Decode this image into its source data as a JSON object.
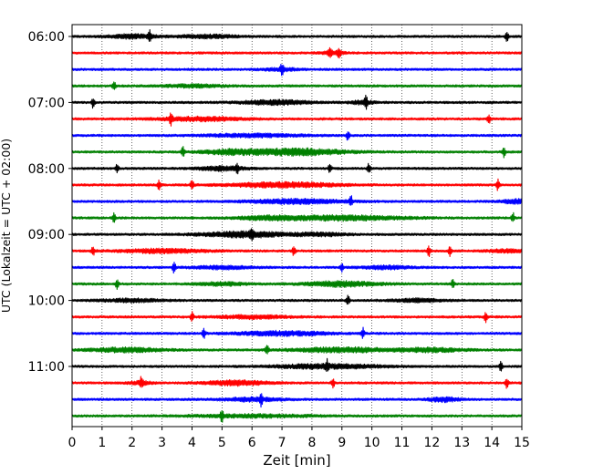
{
  "chart_data": {
    "type": "line",
    "title": "",
    "xlabel": "Zeit  [min]",
    "ylabel": "UTC (Lokalzeit = UTC + 02:00)",
    "xlim": [
      0,
      15
    ],
    "x_ticks": [
      "0",
      "1",
      "2",
      "3",
      "4",
      "5",
      "6",
      "7",
      "8",
      "9",
      "10",
      "11",
      "12",
      "13",
      "14",
      "15"
    ],
    "y_ticks": [
      {
        "label": "06:00",
        "row": 0
      },
      {
        "label": "07:00",
        "row": 4
      },
      {
        "label": "08:00",
        "row": 8
      },
      {
        "label": "09:00",
        "row": 12
      },
      {
        "label": "10:00",
        "row": 16
      },
      {
        "label": "11:00",
        "row": 20
      }
    ],
    "grid_x": true,
    "trace_interval_min": 15,
    "start_time": "06:00",
    "trace_colors": [
      "#000000",
      "#ff0000",
      "#0000ff",
      "#008000"
    ],
    "series": [
      {
        "color": "#000000",
        "spikes": [
          2.6,
          14.5
        ],
        "bursts": [
          [
            2.0,
            0.8,
            2.0
          ],
          [
            4.5,
            1.0,
            1.6
          ]
        ]
      },
      {
        "color": "#ff0000",
        "spikes": [
          8.9,
          8.6
        ],
        "bursts": [
          [
            8.7,
            0.4,
            1.4
          ]
        ]
      },
      {
        "color": "#0000ff",
        "spikes": [
          7.0
        ],
        "bursts": [
          [
            7.0,
            0.6,
            1.4
          ]
        ]
      },
      {
        "color": "#008000",
        "spikes": [
          1.4
        ],
        "bursts": [
          [
            4.0,
            1.0,
            1.4
          ]
        ]
      },
      {
        "color": "#000000",
        "spikes": [
          0.7,
          9.8
        ],
        "bursts": [
          [
            6.8,
            1.2,
            2.2
          ],
          [
            9.7,
            0.4,
            1.8
          ]
        ]
      },
      {
        "color": "#ff0000",
        "spikes": [
          3.3,
          13.9
        ],
        "bursts": [
          [
            4.3,
            1.4,
            2.0
          ]
        ]
      },
      {
        "color": "#0000ff",
        "spikes": [
          9.2
        ],
        "bursts": [
          [
            6.0,
            1.6,
            1.6
          ]
        ]
      },
      {
        "color": "#008000",
        "spikes": [
          3.7,
          14.4
        ],
        "bursts": [
          [
            7.5,
            1.6,
            3.4
          ],
          [
            5.3,
            1.0,
            2.2
          ]
        ]
      },
      {
        "color": "#000000",
        "spikes": [
          1.5,
          5.5,
          8.6,
          9.9
        ],
        "bursts": [
          [
            5.0,
            0.8,
            2.0
          ]
        ]
      },
      {
        "color": "#ff0000",
        "spikes": [
          2.9,
          4.0,
          14.2
        ],
        "bursts": [
          [
            7.0,
            1.8,
            2.6
          ]
        ]
      },
      {
        "color": "#0000ff",
        "spikes": [
          9.3
        ],
        "bursts": [
          [
            7.5,
            1.5,
            2.4
          ],
          [
            14.8,
            0.5,
            2.0
          ]
        ]
      },
      {
        "color": "#008000",
        "spikes": [
          1.4,
          14.7
        ],
        "bursts": [
          [
            9.0,
            2.0,
            2.4
          ],
          [
            6.5,
            1.0,
            1.6
          ]
        ]
      },
      {
        "color": "#000000",
        "spikes": [
          6.0
        ],
        "bursts": [
          [
            5.8,
            1.4,
            3.0
          ],
          [
            8.3,
            0.8,
            1.6
          ]
        ]
      },
      {
        "color": "#ff0000",
        "spikes": [
          0.7,
          7.4,
          11.9,
          12.6
        ],
        "bursts": [
          [
            3.0,
            1.4,
            2.0
          ],
          [
            14.5,
            0.6,
            1.6
          ]
        ]
      },
      {
        "color": "#0000ff",
        "spikes": [
          3.4,
          9.0
        ],
        "bursts": [
          [
            5.0,
            1.0,
            1.6
          ],
          [
            10.5,
            0.8,
            1.6
          ]
        ]
      },
      {
        "color": "#008000",
        "spikes": [
          1.5,
          12.7
        ],
        "bursts": [
          [
            9.0,
            1.2,
            2.6
          ],
          [
            5.0,
            0.8,
            1.6
          ]
        ]
      },
      {
        "color": "#000000",
        "spikes": [
          9.2
        ],
        "bursts": [
          [
            2.0,
            1.0,
            1.6
          ],
          [
            11.5,
            0.8,
            1.6
          ]
        ]
      },
      {
        "color": "#ff0000",
        "spikes": [
          4.0,
          13.8
        ],
        "bursts": [
          [
            6.0,
            1.2,
            1.6
          ]
        ]
      },
      {
        "color": "#0000ff",
        "spikes": [
          4.4,
          9.7
        ],
        "bursts": [
          [
            7.0,
            1.5,
            2.2
          ]
        ]
      },
      {
        "color": "#008000",
        "spikes": [
          6.5
        ],
        "bursts": [
          [
            1.8,
            1.2,
            2.2
          ],
          [
            9.0,
            1.6,
            2.4
          ],
          [
            12.0,
            1.0,
            2.0
          ]
        ]
      },
      {
        "color": "#000000",
        "spikes": [
          8.5,
          14.3
        ],
        "bursts": [
          [
            8.5,
            1.8,
            2.2
          ]
        ]
      },
      {
        "color": "#ff0000",
        "spikes": [
          2.3,
          8.7,
          14.5
        ],
        "bursts": [
          [
            5.5,
            1.0,
            2.4
          ],
          [
            2.3,
            0.4,
            1.6
          ]
        ]
      },
      {
        "color": "#0000ff",
        "spikes": [
          6.3
        ],
        "bursts": [
          [
            6.0,
            1.0,
            1.8
          ],
          [
            12.4,
            0.5,
            2.2
          ]
        ]
      },
      {
        "color": "#008000",
        "spikes": [
          5.0
        ],
        "bursts": [
          [
            6.0,
            2.0,
            1.4
          ]
        ]
      }
    ]
  }
}
